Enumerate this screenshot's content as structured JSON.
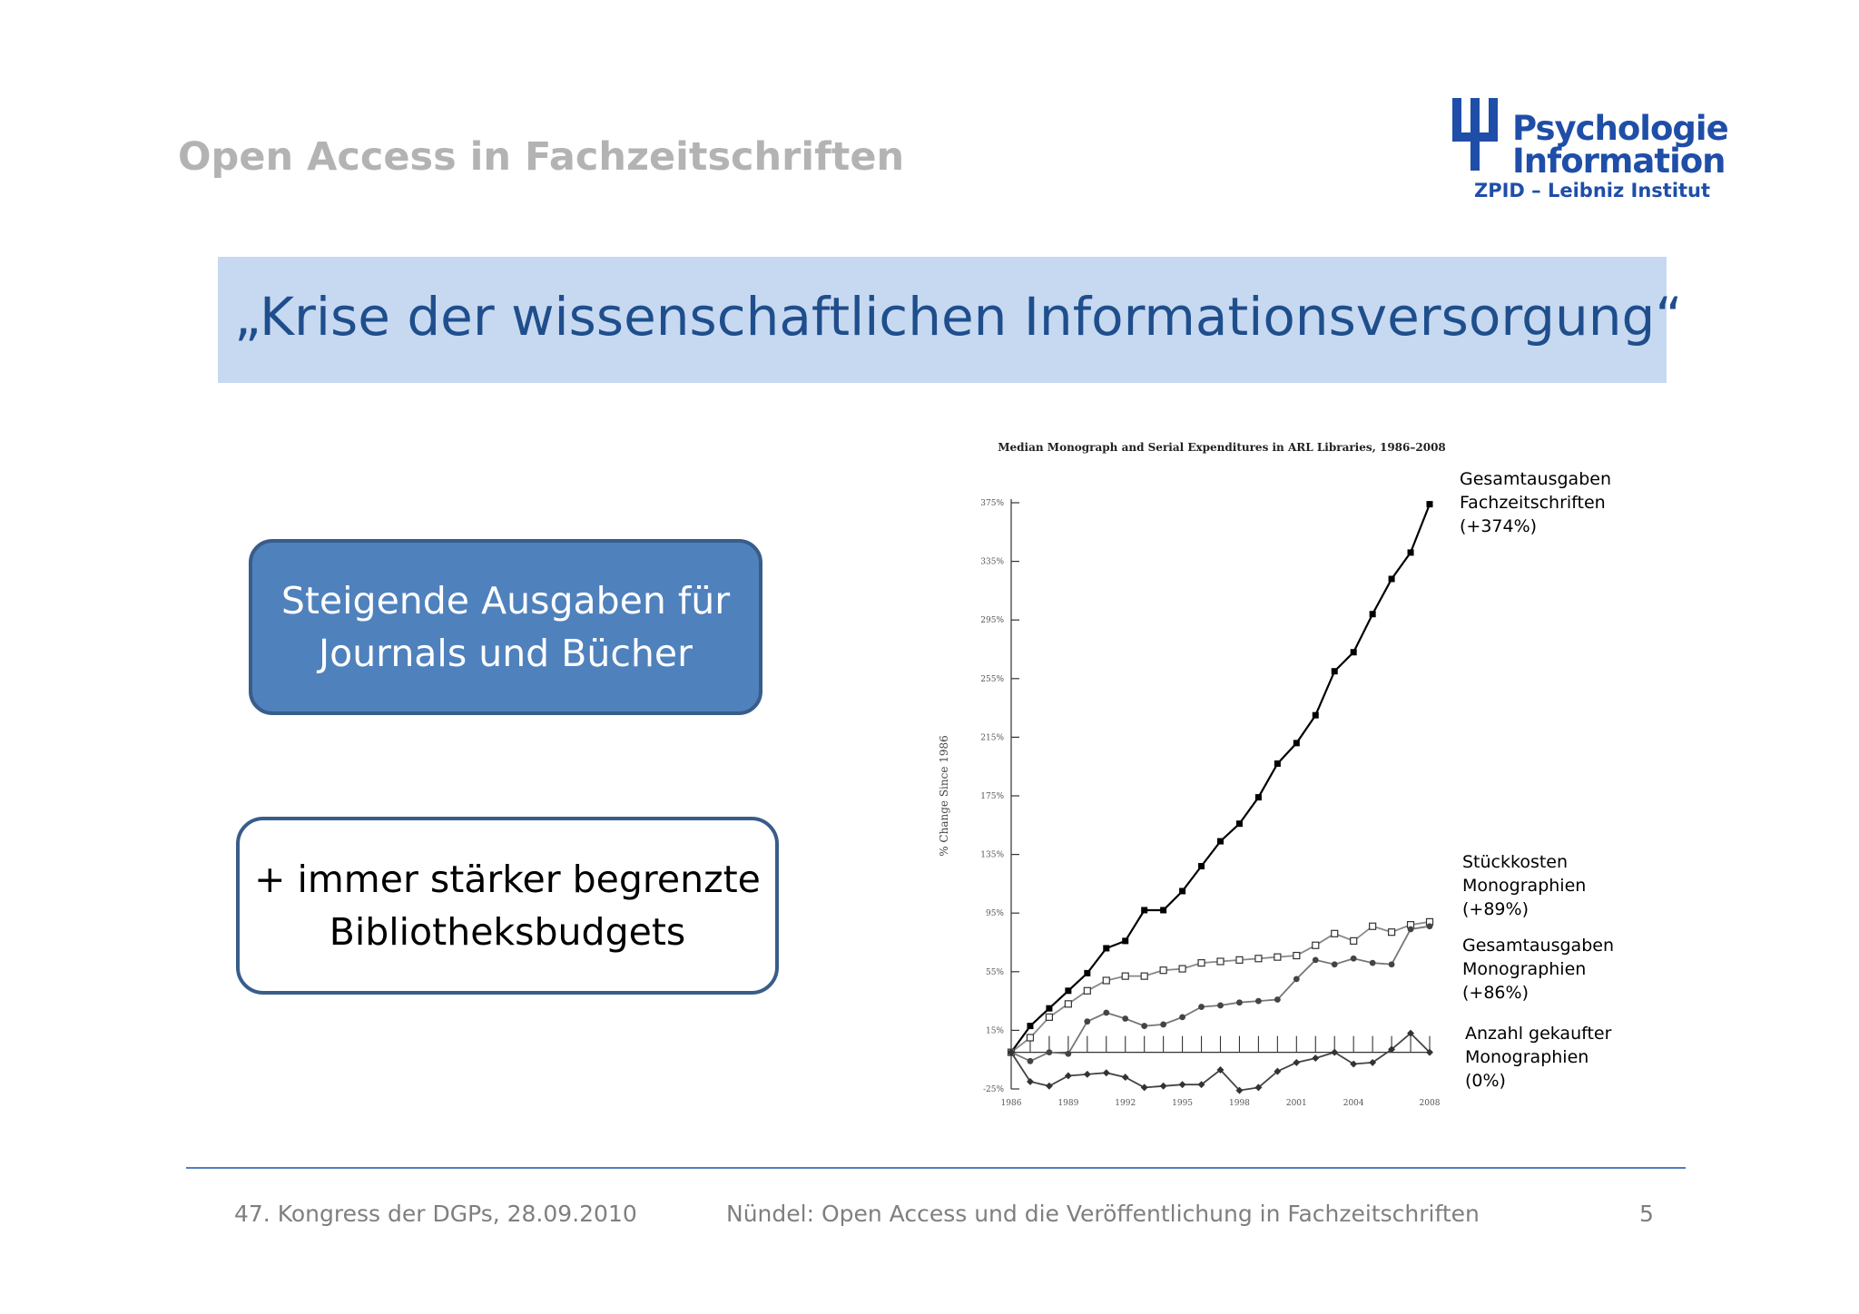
{
  "header": {
    "title": "Open Access in Fachzeitschriften"
  },
  "logo": {
    "line1": "Psychologie",
    "line2": "Information",
    "line3": "ZPID – Leibniz Institut",
    "color": "#1f4ea8"
  },
  "banner": {
    "text": "„Krise der wissenschaftlichen Informationsversorgung“"
  },
  "box_blue": {
    "line1": "Steigende Ausgaben für",
    "line2": "Journals und Bücher"
  },
  "box_white": {
    "line1": "+ immer stärker begrenzte",
    "line2": "Bibliotheksbudgets"
  },
  "annotations": {
    "serials": [
      "Gesamtausgaben",
      "Fachzeitschriften",
      "(+374%)"
    ],
    "unit_cost": [
      "Stückkosten",
      "Monographien",
      "(+89%)"
    ],
    "mono_exp": [
      "Gesamtausgaben",
      "Monographien",
      "(+86%)"
    ],
    "mono_count": [
      "Anzahl gekaufter",
      "Monographien",
      "(0%)"
    ]
  },
  "chart_data": {
    "type": "line",
    "title": "Median Monograph and Serial Expenditures in ARL Libraries, 1986–2008",
    "ylabel": "% Change Since 1986",
    "xlabel": "",
    "ylim": [
      -25,
      375
    ],
    "yticks": [
      "375%",
      "335%",
      "295%",
      "255%",
      "215%",
      "175%",
      "135%",
      "95%",
      "55%",
      "15%",
      "-25%"
    ],
    "xticks": [
      "1986",
      "1989",
      "1992",
      "1995",
      "1998",
      "2001",
      "2004",
      "2008"
    ],
    "x": [
      1986,
      1987,
      1988,
      1989,
      1990,
      1991,
      1992,
      1993,
      1994,
      1995,
      1996,
      1997,
      1998,
      1999,
      2000,
      2001,
      2002,
      2003,
      2004,
      2005,
      2006,
      2007,
      2008
    ],
    "series": [
      {
        "name": "Gesamtausgaben Fachzeitschriften",
        "marker": "filled-square",
        "color": "#000000",
        "values": [
          0,
          18,
          30,
          42,
          54,
          71,
          76,
          97,
          97,
          110,
          127,
          144,
          156,
          174,
          197,
          211,
          230,
          260,
          273,
          299,
          323,
          341,
          374
        ]
      },
      {
        "name": "Stückkosten Monographien",
        "marker": "open-square",
        "color": "#888888",
        "values": [
          0,
          10,
          24,
          33,
          42,
          49,
          52,
          52,
          56,
          57,
          61,
          62,
          63,
          64,
          65,
          66,
          73,
          81,
          76,
          86,
          82,
          87,
          89
        ]
      },
      {
        "name": "Gesamtausgaben Monographien",
        "marker": "circle",
        "color": "#777777",
        "values": [
          0,
          -6,
          0,
          -1,
          21,
          27,
          23,
          18,
          19,
          24,
          31,
          32,
          34,
          35,
          36,
          50,
          63,
          60,
          64,
          61,
          60,
          84,
          86
        ]
      },
      {
        "name": "Anzahl gekaufter Monographien",
        "marker": "diamond",
        "color": "#444444",
        "values": [
          0,
          -20,
          -23,
          -16,
          -15,
          -14,
          -17,
          -24,
          -23,
          -22,
          -22,
          -12,
          -26,
          -24,
          -13,
          -7,
          -4,
          0,
          -8,
          -7,
          2,
          13,
          0
        ]
      }
    ]
  },
  "footer": {
    "left": "47. Kongress der DGPs, 28.09.2010",
    "center": "Nündel: Open Access und die Veröffentlichung in Fachzeitschriften",
    "page": "5"
  }
}
